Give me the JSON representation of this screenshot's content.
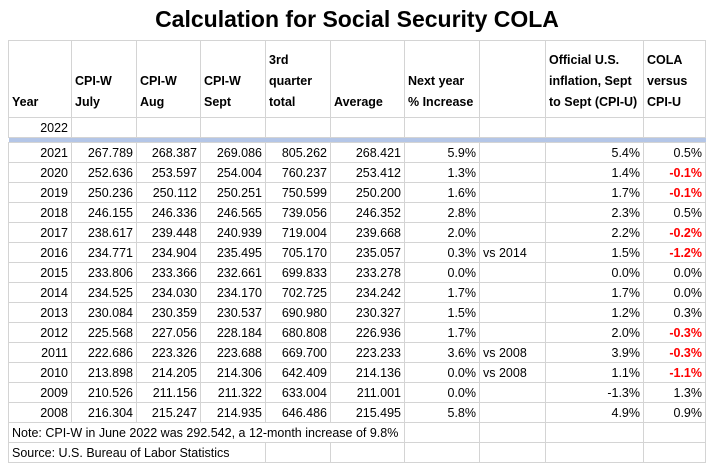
{
  "title": "Calculation for Social Security COLA",
  "headers": [
    "Year",
    "CPI-W July",
    "CPI-W Aug",
    "CPI-W Sept",
    "3rd quarter total",
    "Average",
    "Next year % Increase",
    "",
    "Official U.S. inflation, Sept to Sept (CPI-U)",
    "COLA versus CPI-U"
  ],
  "current_year": "2022",
  "rows": [
    [
      "2021",
      "267.789",
      "268.387",
      "269.086",
      "805.262",
      "268.421",
      "5.9%",
      "",
      "5.4%",
      "0.5%"
    ],
    [
      "2020",
      "252.636",
      "253.597",
      "254.004",
      "760.237",
      "253.412",
      "1.3%",
      "",
      "1.4%",
      "-0.1%"
    ],
    [
      "2019",
      "250.236",
      "250.112",
      "250.251",
      "750.599",
      "250.200",
      "1.6%",
      "",
      "1.7%",
      "-0.1%"
    ],
    [
      "2018",
      "246.155",
      "246.336",
      "246.565",
      "739.056",
      "246.352",
      "2.8%",
      "",
      "2.3%",
      "0.5%"
    ],
    [
      "2017",
      "238.617",
      "239.448",
      "240.939",
      "719.004",
      "239.668",
      "2.0%",
      "",
      "2.2%",
      "-0.2%"
    ],
    [
      "2016",
      "234.771",
      "234.904",
      "235.495",
      "705.170",
      "235.057",
      "0.3%",
      "vs 2014",
      "1.5%",
      "-1.2%"
    ],
    [
      "2015",
      "233.806",
      "233.366",
      "232.661",
      "699.833",
      "233.278",
      "0.0%",
      "",
      "0.0%",
      "0.0%"
    ],
    [
      "2014",
      "234.525",
      "234.030",
      "234.170",
      "702.725",
      "234.242",
      "1.7%",
      "",
      "1.7%",
      "0.0%"
    ],
    [
      "2013",
      "230.084",
      "230.359",
      "230.537",
      "690.980",
      "230.327",
      "1.5%",
      "",
      "1.2%",
      "0.3%"
    ],
    [
      "2012",
      "225.568",
      "227.056",
      "228.184",
      "680.808",
      "226.936",
      "1.7%",
      "",
      "2.0%",
      "-0.3%"
    ],
    [
      "2011",
      "222.686",
      "223.326",
      "223.688",
      "669.700",
      "223.233",
      "3.6%",
      "vs 2008",
      "3.9%",
      "-0.3%"
    ],
    [
      "2010",
      "213.898",
      "214.205",
      "214.306",
      "642.409",
      "214.136",
      "0.0%",
      "vs 2008",
      "1.1%",
      "-1.1%"
    ],
    [
      "2009",
      "210.526",
      "211.156",
      "211.322",
      "633.004",
      "211.001",
      "0.0%",
      "",
      "-1.3%",
      "1.3%"
    ],
    [
      "2008",
      "216.304",
      "215.247",
      "214.935",
      "646.486",
      "215.495",
      "5.8%",
      "",
      "4.9%",
      "0.9%"
    ]
  ],
  "note": "Note: CPI-W in June 2022 was 292.542, a 12-month increase of 9.8%",
  "source": "Source: U.S. Bureau of Labor Statistics",
  "colors": {
    "negative": "#ff0000",
    "band": "#b4c6e7"
  }
}
